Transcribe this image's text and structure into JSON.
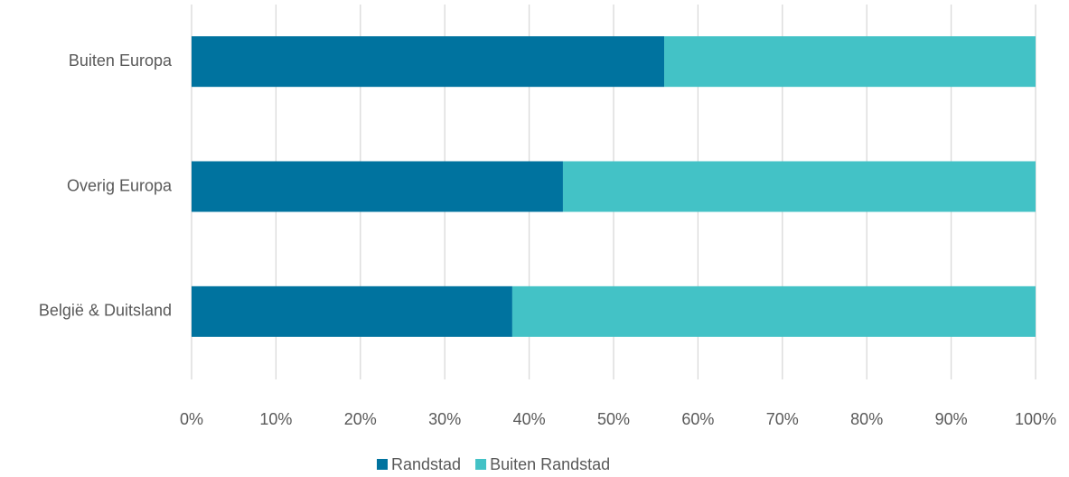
{
  "chart_data": {
    "type": "stacked_barh",
    "categories": [
      "Buiten Europa",
      "Overig Europa",
      "België & Duitsland"
    ],
    "series": [
      {
        "name": "Randstad",
        "color": "#00739f",
        "values": [
          56,
          44,
          38
        ]
      },
      {
        "name": "Buiten Randstad",
        "color": "#43c2c6",
        "values": [
          44,
          56,
          62
        ]
      }
    ],
    "xlim": [
      0,
      100
    ],
    "xticks": [
      {
        "value": 0,
        "label": "0%"
      },
      {
        "value": 10,
        "label": "10%"
      },
      {
        "value": 20,
        "label": "20%"
      },
      {
        "value": 30,
        "label": "30%"
      },
      {
        "value": 40,
        "label": "40%"
      },
      {
        "value": 50,
        "label": "50%"
      },
      {
        "value": 60,
        "label": "60%"
      },
      {
        "value": 70,
        "label": "70%"
      },
      {
        "value": 80,
        "label": "80%"
      },
      {
        "value": 90,
        "label": "90%"
      },
      {
        "value": 100,
        "label": "100%"
      }
    ],
    "grid": true,
    "legend": "bottom"
  }
}
